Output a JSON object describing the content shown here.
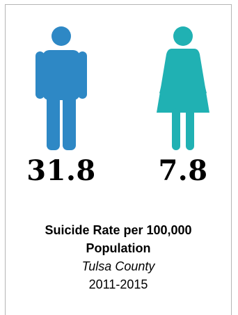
{
  "icons": {
    "male": {
      "name": "male-person-icon",
      "color": "#2E88C5"
    },
    "female": {
      "name": "female-person-icon",
      "color": "#20B1B3"
    }
  },
  "rates": {
    "male": "31.8",
    "female": "7.8"
  },
  "caption": {
    "title_line1": "Suicide Rate per 100,000",
    "title_line2": "Population",
    "county": "Tulsa County",
    "years": "2011-2015"
  }
}
